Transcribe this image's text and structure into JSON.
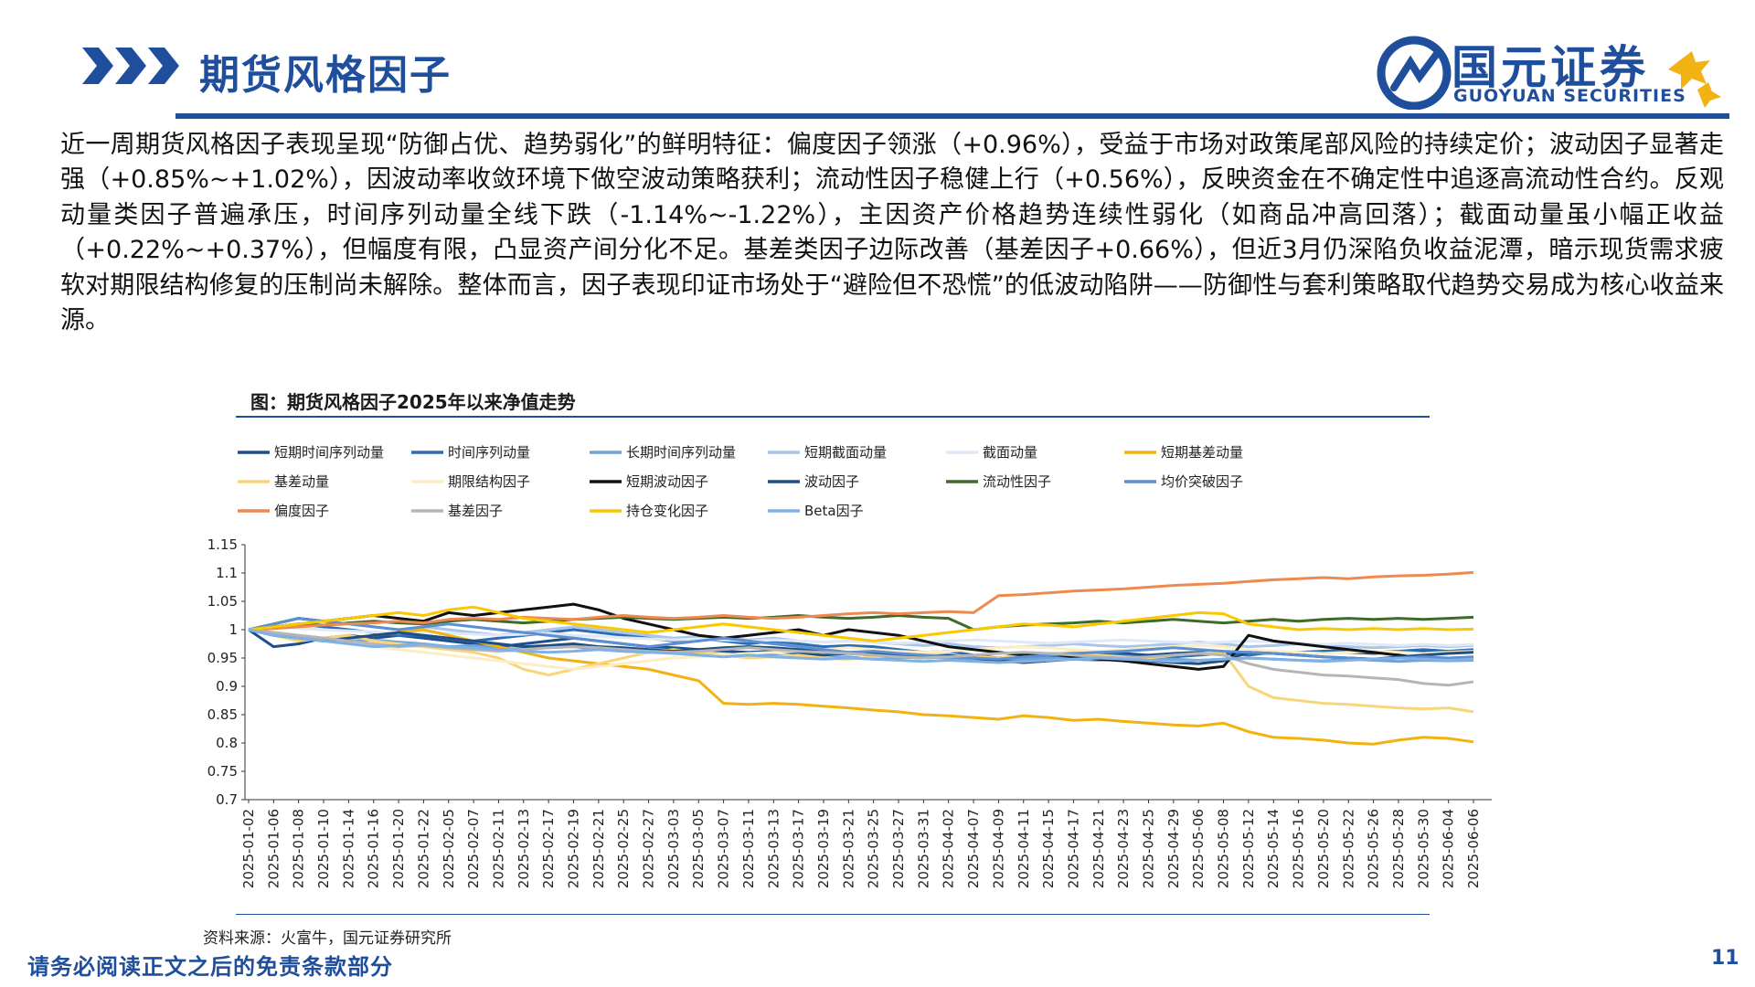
{
  "header": {
    "title": "期货风格因子",
    "logo_cn": "国元证券",
    "logo_en": "GUOYUAN SECURITIES",
    "brand_color": "#1f4e9c"
  },
  "body": {
    "paragraph": "近一周期货风格因子表现呈现“防御占优、趋势弱化”的鲜明特征：偏度因子领涨（+0.96%），受益于市场对政策尾部风险的持续定价；波动因子显著走强（+0.85%~+1.02%），因波动率收敛环境下做空波动策略获利；流动性因子稳健上行（+0.56%），反映资金在不确定性中追逐高流动性合约。反观动量类因子普遍承压，时间序列动量全线下跌（-1.14%~-1.22%），主因资产价格趋势连续性弱化（如商品冲高回落）；截面动量虽小幅正收益（+0.22%~+0.37%），但幅度有限，凸显资产间分化不足。基差类因子边际改善（基差因子+0.66%），但近3月仍深陷负收益泥潭，暗示现货需求疲软对期限结构修复的压制尚未解除。整体而言，因子表现印证市场处于“避险但不恐慌”的低波动陷阱——防御性与套利策略取代趋势交易成为核心收益来源。"
  },
  "figure": {
    "title": "图：期货风格因子2025年以来净值走势",
    "source": "资料来源：火富牛，国元证券研究所"
  },
  "footer": {
    "note": "请务必阅读正文之后的免责条款部分",
    "page": "11"
  },
  "chart_data": {
    "type": "line",
    "title": "",
    "xlabel": "",
    "ylabel": "",
    "ylim": [
      0.7,
      1.15
    ],
    "yticks": [
      0.7,
      0.75,
      0.8,
      0.85,
      0.9,
      0.95,
      1,
      1.05,
      1.1,
      1.15
    ],
    "ytick_labels": [
      "0.7",
      "0.75",
      "0.8",
      "0.85",
      "0.9",
      "0.95",
      "1",
      "1.05",
      "1.1",
      "1.15"
    ],
    "grid": false,
    "legend_position": "top",
    "x_tick_labels": [
      "2025-01-02",
      "2025-01-06",
      "2025-01-08",
      "2025-01-10",
      "2025-01-14",
      "2025-01-16",
      "2025-01-20",
      "2025-01-22",
      "2025-02-05",
      "2025-02-07",
      "2025-02-11",
      "2025-02-13",
      "2025-02-17",
      "2025-02-19",
      "2025-02-21",
      "2025-02-25",
      "2025-02-27",
      "2025-03-03",
      "2025-03-05",
      "2025-03-07",
      "2025-03-11",
      "2025-03-13",
      "2025-03-17",
      "2025-03-19",
      "2025-03-21",
      "2025-03-25",
      "2025-03-27",
      "2025-03-31",
      "2025-04-02",
      "2025-04-07",
      "2025-04-09",
      "2025-04-11",
      "2025-04-15",
      "2025-04-17",
      "2025-04-21",
      "2025-04-23",
      "2025-04-25",
      "2025-04-29",
      "2025-05-06",
      "2025-05-08",
      "2025-05-12",
      "2025-05-14",
      "2025-05-16",
      "2025-05-20",
      "2025-05-22",
      "2025-05-26",
      "2025-05-28",
      "2025-05-30",
      "2025-06-04",
      "2025-06-06"
    ],
    "series": [
      {
        "name": "短期时间序列动量",
        "color": "#1f4e8c",
        "values": [
          1,
          0.97,
          0.975,
          0.985,
          0.99,
          0.985,
          0.99,
          0.985,
          0.98,
          0.975,
          0.97,
          0.975,
          0.98,
          0.985,
          0.98,
          0.975,
          0.97,
          0.968,
          0.965,
          0.962,
          0.96,
          0.962,
          0.958,
          0.955,
          0.958,
          0.955,
          0.952,
          0.95,
          0.952,
          0.95,
          0.948,
          0.95,
          0.955,
          0.952,
          0.955,
          0.958,
          0.955,
          0.958,
          0.96,
          0.958,
          0.96,
          0.958,
          0.96,
          0.962,
          0.96,
          0.958,
          0.96,
          0.962,
          0.96,
          0.962
        ]
      },
      {
        "name": "时间序列动量",
        "color": "#2e6db4",
        "values": [
          1,
          1.005,
          1.01,
          1.005,
          1.0,
          0.995,
          0.99,
          0.99,
          0.985,
          0.98,
          0.985,
          0.99,
          0.995,
          1.0,
          0.995,
          0.99,
          0.985,
          0.98,
          0.985,
          0.98,
          0.975,
          0.98,
          0.975,
          0.97,
          0.972,
          0.97,
          0.965,
          0.96,
          0.962,
          0.955,
          0.95,
          0.955,
          0.952,
          0.955,
          0.958,
          0.955,
          0.95,
          0.952,
          0.955,
          0.958,
          0.955,
          0.96,
          0.958,
          0.962,
          0.965,
          0.96,
          0.962,
          0.965,
          0.962,
          0.965
        ]
      },
      {
        "name": "长期时间序列动量",
        "color": "#6fa2d6",
        "values": [
          1,
          0.995,
          0.99,
          0.985,
          0.98,
          0.982,
          0.978,
          0.975,
          0.97,
          0.972,
          0.968,
          0.965,
          0.968,
          0.97,
          0.965,
          0.962,
          0.96,
          0.962,
          0.958,
          0.955,
          0.958,
          0.955,
          0.952,
          0.95,
          0.952,
          0.948,
          0.95,
          0.952,
          0.95,
          0.948,
          0.945,
          0.948,
          0.95,
          0.948,
          0.946,
          0.948,
          0.95,
          0.948,
          0.946,
          0.948,
          0.95,
          0.948,
          0.946,
          0.945,
          0.948,
          0.946,
          0.944,
          0.946,
          0.945,
          0.946
        ]
      },
      {
        "name": "短期截面动量",
        "color": "#a9c6e8",
        "values": [
          1,
          1.005,
          1.01,
          1.015,
          1.01,
          1.005,
          1.0,
          1.005,
          1.0,
          0.995,
          0.99,
          0.995,
          1.0,
          1.005,
          1.0,
          0.995,
          0.99,
          0.985,
          0.988,
          0.985,
          0.982,
          0.985,
          0.98,
          0.978,
          0.98,
          0.978,
          0.975,
          0.972,
          0.975,
          0.97,
          0.968,
          0.97,
          0.972,
          0.975,
          0.972,
          0.97,
          0.972,
          0.975,
          0.978,
          0.975,
          0.97,
          0.972,
          0.975,
          0.972,
          0.97,
          0.968,
          0.97,
          0.972,
          0.97,
          0.972
        ]
      },
      {
        "name": "截面动量",
        "color": "#dfe9f5",
        "values": [
          1,
          1.005,
          1.002,
          1.0,
          0.998,
          0.996,
          0.994,
          0.996,
          0.994,
          0.992,
          0.99,
          0.992,
          0.994,
          0.99,
          0.988,
          0.986,
          0.984,
          0.982,
          0.984,
          0.982,
          0.98,
          0.982,
          0.98,
          0.978,
          0.98,
          0.978,
          0.976,
          0.978,
          0.98,
          0.982,
          0.98,
          0.978,
          0.976,
          0.978,
          0.98,
          0.982,
          0.98,
          0.978,
          0.976,
          0.978,
          0.98,
          0.978,
          0.976,
          0.974,
          0.976,
          0.974,
          0.972,
          0.974,
          0.972,
          0.974
        ]
      },
      {
        "name": "短期基差动量",
        "color": "#f2b213",
        "values": [
          1,
          0.99,
          0.985,
          0.98,
          0.985,
          0.99,
          0.995,
          1.0,
          0.99,
          0.98,
          0.97,
          0.96,
          0.95,
          0.945,
          0.94,
          0.935,
          0.93,
          0.92,
          0.91,
          0.87,
          0.868,
          0.87,
          0.868,
          0.865,
          0.862,
          0.858,
          0.855,
          0.85,
          0.848,
          0.845,
          0.842,
          0.848,
          0.845,
          0.84,
          0.842,
          0.838,
          0.835,
          0.832,
          0.83,
          0.835,
          0.82,
          0.81,
          0.808,
          0.805,
          0.8,
          0.798,
          0.805,
          0.81,
          0.808,
          0.802
        ]
      },
      {
        "name": "基差动量",
        "color": "#f7d57a",
        "values": [
          1,
          0.99,
          0.98,
          0.985,
          0.99,
          0.98,
          0.975,
          0.97,
          0.965,
          0.96,
          0.95,
          0.93,
          0.92,
          0.93,
          0.94,
          0.95,
          0.96,
          0.965,
          0.96,
          0.955,
          0.95,
          0.952,
          0.955,
          0.95,
          0.948,
          0.952,
          0.955,
          0.958,
          0.955,
          0.952,
          0.95,
          0.955,
          0.958,
          0.96,
          0.955,
          0.952,
          0.95,
          0.955,
          0.958,
          0.96,
          0.9,
          0.88,
          0.875,
          0.87,
          0.868,
          0.865,
          0.862,
          0.86,
          0.862,
          0.855
        ]
      },
      {
        "name": "期限结构因子",
        "color": "#fbeec4",
        "values": [
          1,
          0.99,
          0.985,
          0.98,
          0.975,
          0.97,
          0.965,
          0.96,
          0.955,
          0.95,
          0.945,
          0.94,
          0.935,
          0.93,
          0.935,
          0.94,
          0.945,
          0.95,
          0.952,
          0.955,
          0.958,
          0.96,
          0.962,
          0.965,
          0.968,
          0.965,
          0.962,
          0.96,
          0.962,
          0.965,
          0.968,
          0.97,
          0.968,
          0.965,
          0.962,
          0.965,
          0.968,
          0.97,
          0.972,
          0.97,
          0.965,
          0.962,
          0.96,
          0.958,
          0.96,
          0.962,
          0.96,
          0.958,
          0.96,
          0.962
        ]
      },
      {
        "name": "短期波动因子",
        "color": "#111111",
        "values": [
          1,
          1.01,
          1.02,
          1.015,
          1.02,
          1.025,
          1.02,
          1.015,
          1.03,
          1.025,
          1.03,
          1.035,
          1.04,
          1.045,
          1.035,
          1.02,
          1.01,
          1.0,
          0.99,
          0.985,
          0.99,
          0.995,
          1.0,
          0.99,
          1.0,
          0.995,
          0.99,
          0.98,
          0.97,
          0.965,
          0.96,
          0.955,
          0.958,
          0.952,
          0.948,
          0.945,
          0.94,
          0.935,
          0.93,
          0.935,
          0.99,
          0.98,
          0.975,
          0.97,
          0.965,
          0.96,
          0.955,
          0.95,
          0.948,
          0.95
        ]
      },
      {
        "name": "波动因子",
        "color": "#1d4f85",
        "values": [
          1,
          0.99,
          0.985,
          0.98,
          0.985,
          0.99,
          0.995,
          0.99,
          0.985,
          0.98,
          0.975,
          0.97,
          0.972,
          0.975,
          0.97,
          0.968,
          0.965,
          0.962,
          0.965,
          0.968,
          0.97,
          0.968,
          0.965,
          0.962,
          0.96,
          0.958,
          0.955,
          0.952,
          0.955,
          0.95,
          0.945,
          0.942,
          0.945,
          0.948,
          0.95,
          0.948,
          0.945,
          0.942,
          0.94,
          0.945,
          0.96,
          0.958,
          0.955,
          0.952,
          0.95,
          0.948,
          0.952,
          0.955,
          0.958,
          0.96
        ]
      },
      {
        "name": "流动性因子",
        "color": "#3e6b2a",
        "values": [
          1,
          1.005,
          1.01,
          1.008,
          1.012,
          1.015,
          1.012,
          1.01,
          1.015,
          1.018,
          1.015,
          1.012,
          1.015,
          1.018,
          1.02,
          1.022,
          1.02,
          1.018,
          1.02,
          1.022,
          1.02,
          1.022,
          1.025,
          1.022,
          1.02,
          1.022,
          1.025,
          1.022,
          1.02,
          1.0,
          1.005,
          1.008,
          1.01,
          1.012,
          1.015,
          1.012,
          1.015,
          1.018,
          1.015,
          1.012,
          1.015,
          1.018,
          1.015,
          1.018,
          1.02,
          1.018,
          1.02,
          1.018,
          1.02,
          1.022
        ]
      },
      {
        "name": "均价突破因子",
        "color": "#5b8fd1",
        "values": [
          1,
          1.01,
          1.02,
          1.015,
          1.01,
          1.005,
          1.0,
          1.005,
          1.01,
          1.005,
          1.0,
          0.995,
          0.99,
          0.985,
          0.98,
          0.975,
          0.97,
          0.975,
          0.98,
          0.985,
          0.98,
          0.975,
          0.97,
          0.965,
          0.96,
          0.962,
          0.958,
          0.955,
          0.952,
          0.95,
          0.948,
          0.952,
          0.955,
          0.958,
          0.96,
          0.962,
          0.965,
          0.968,
          0.965,
          0.962,
          0.96,
          0.958,
          0.955,
          0.952,
          0.95,
          0.948,
          0.95,
          0.952,
          0.95,
          0.952
        ]
      },
      {
        "name": "偏度因子",
        "color": "#ed8a4f",
        "values": [
          1,
          1.002,
          1.005,
          1.008,
          1.01,
          1.012,
          1.015,
          1.012,
          1.018,
          1.02,
          1.018,
          1.022,
          1.02,
          1.018,
          1.022,
          1.025,
          1.022,
          1.02,
          1.022,
          1.025,
          1.022,
          1.02,
          1.022,
          1.025,
          1.028,
          1.03,
          1.028,
          1.03,
          1.032,
          1.03,
          1.06,
          1.062,
          1.065,
          1.068,
          1.07,
          1.072,
          1.075,
          1.078,
          1.08,
          1.082,
          1.085,
          1.088,
          1.09,
          1.092,
          1.09,
          1.093,
          1.095,
          1.096,
          1.098,
          1.101
        ]
      },
      {
        "name": "基差因子",
        "color": "#b5b5b5",
        "values": [
          1,
          0.995,
          0.99,
          0.985,
          0.98,
          0.975,
          0.97,
          0.972,
          0.968,
          0.965,
          0.962,
          0.965,
          0.968,
          0.97,
          0.968,
          0.965,
          0.962,
          0.96,
          0.962,
          0.965,
          0.968,
          0.965,
          0.962,
          0.96,
          0.958,
          0.955,
          0.952,
          0.95,
          0.952,
          0.955,
          0.958,
          0.96,
          0.958,
          0.955,
          0.952,
          0.95,
          0.952,
          0.955,
          0.958,
          0.955,
          0.94,
          0.93,
          0.925,
          0.92,
          0.918,
          0.915,
          0.912,
          0.905,
          0.902,
          0.908
        ]
      },
      {
        "name": "持仓变化因子",
        "color": "#f9c800",
        "values": [
          1,
          1.005,
          1.01,
          1.015,
          1.02,
          1.025,
          1.03,
          1.025,
          1.035,
          1.04,
          1.03,
          1.02,
          1.015,
          1.01,
          1.005,
          1.0,
          0.995,
          1.0,
          1.005,
          1.01,
          1.005,
          1.0,
          0.995,
          0.99,
          0.985,
          0.98,
          0.985,
          0.99,
          0.995,
          1.0,
          1.005,
          1.01,
          1.008,
          1.005,
          1.01,
          1.015,
          1.02,
          1.025,
          1.03,
          1.028,
          1.01,
          1.005,
          1.0,
          1.002,
          1.0,
          1.002,
          1.0,
          1.002,
          1.0,
          1.001
        ]
      },
      {
        "name": "Beta因子",
        "color": "#7fb0e6",
        "values": [
          1,
          0.99,
          0.985,
          0.98,
          0.975,
          0.97,
          0.972,
          0.975,
          0.97,
          0.968,
          0.965,
          0.962,
          0.96,
          0.962,
          0.965,
          0.962,
          0.96,
          0.958,
          0.955,
          0.952,
          0.955,
          0.952,
          0.95,
          0.948,
          0.95,
          0.948,
          0.946,
          0.944,
          0.946,
          0.944,
          0.942,
          0.944,
          0.946,
          0.948,
          0.95,
          0.948,
          0.946,
          0.944,
          0.946,
          0.948,
          0.95,
          0.948,
          0.946,
          0.944,
          0.946,
          0.948,
          0.95,
          0.948,
          0.946,
          0.948
        ]
      }
    ]
  }
}
